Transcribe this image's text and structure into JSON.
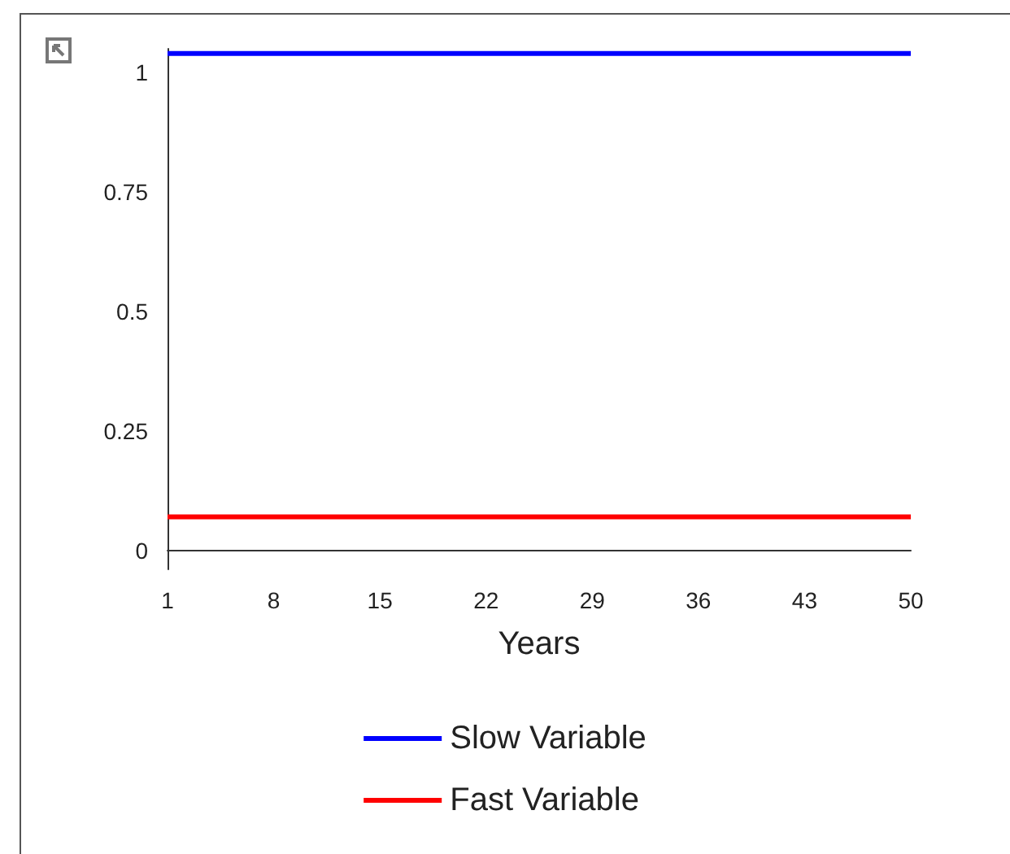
{
  "chart_data": {
    "type": "line",
    "xlabel": "Years",
    "x": [
      1,
      50
    ],
    "series": [
      {
        "name": "Slow Variable",
        "color": "#0000ff",
        "values": [
          1.04,
          1.04
        ]
      },
      {
        "name": "Fast Variable",
        "color": "#ff0000",
        "values": [
          0.07,
          0.07
        ]
      }
    ],
    "xlim": [
      1,
      50
    ],
    "xticks": [
      1,
      8,
      15,
      22,
      29,
      36,
      43,
      50
    ],
    "ylim": [
      -0.04,
      1.05
    ],
    "yticks": [
      0,
      0.25,
      0.5,
      0.75,
      1
    ],
    "grid": false,
    "legend": "bottom",
    "marker": "none",
    "line_style": "solid"
  }
}
